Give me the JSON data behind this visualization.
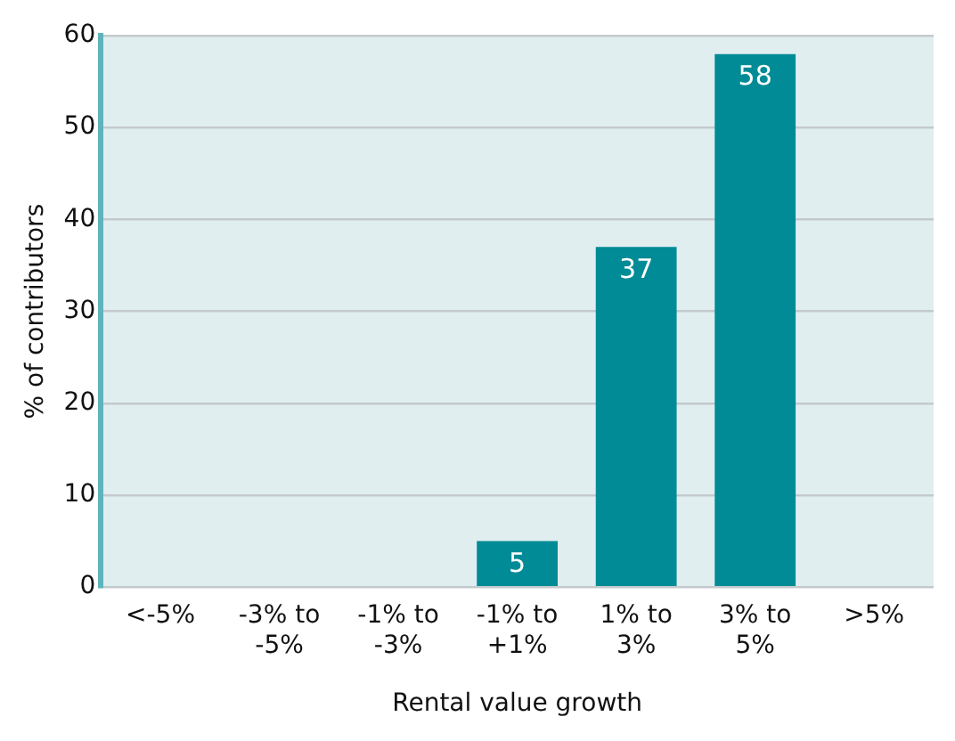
{
  "chart_data": {
    "type": "bar",
    "xlabel": "Rental value growth",
    "ylabel": "% of contributors",
    "categories": [
      "<-5%",
      "-3% to -5%",
      "-1% to -3%",
      "-1% to +1%",
      "1% to 3%",
      "3% to 5%",
      ">5%"
    ],
    "values": [
      0,
      0,
      0,
      5,
      37,
      58,
      0
    ],
    "value_labels": [
      null,
      null,
      null,
      "5",
      "37",
      "58",
      null
    ],
    "color": "#008b96",
    "ylim": [
      0,
      60
    ],
    "yticks": [
      0,
      10,
      20,
      30,
      40,
      50,
      60
    ],
    "grid": "y",
    "legend": false
  }
}
